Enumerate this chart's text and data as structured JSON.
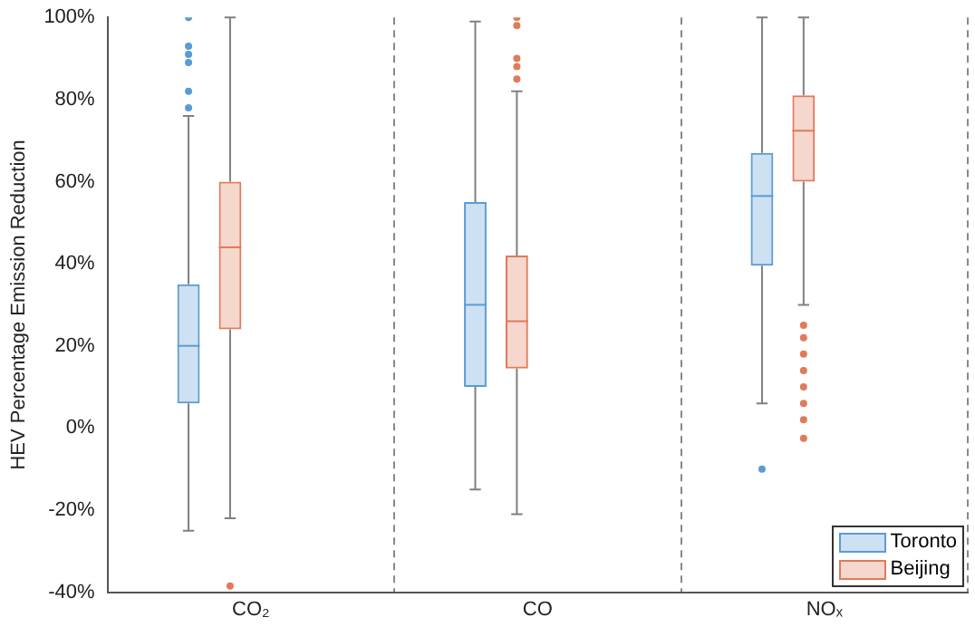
{
  "chart_data": {
    "type": "box",
    "ylabel": "HEV Percentage Emission Reduction",
    "categories": [
      "CO₂",
      "CO",
      "NOₓ"
    ],
    "ylim": [
      -40,
      100
    ],
    "yticks": [
      {
        "value": -40,
        "label": "-40%"
      },
      {
        "value": -20,
        "label": "-20%"
      },
      {
        "value": 0,
        "label": "0%"
      },
      {
        "value": 20,
        "label": "20%"
      },
      {
        "value": 40,
        "label": "40%"
      },
      {
        "value": 60,
        "label": "60%"
      },
      {
        "value": 80,
        "label": "80%"
      },
      {
        "value": 100,
        "label": "100%"
      }
    ],
    "grid": "x",
    "legend": "bottom right",
    "series": [
      {
        "name": "Toronto",
        "color": "#5b9bd5",
        "boxes": [
          {
            "low": -25,
            "q1": 6,
            "median": 20,
            "q3": 35,
            "high": 76,
            "outliers": [
              78,
              82,
              89,
              91,
              93,
              100
            ]
          },
          {
            "low": -15,
            "q1": 10,
            "median": 30,
            "q3": 55,
            "high": 99
          },
          {
            "low": 6,
            "q1": 39.5,
            "median": 56.5,
            "q3": 67,
            "high": 100,
            "outliers": [
              -10
            ]
          }
        ]
      },
      {
        "name": "Beijing",
        "color": "#e07b5a",
        "boxes": [
          {
            "low": -22,
            "q1": 24,
            "median": 44,
            "q3": 60,
            "high": 100,
            "outliers": [
              -38.5
            ]
          },
          {
            "low": -21,
            "q1": 14.5,
            "median": 26,
            "q3": 42,
            "high": 82,
            "outliers": [
              85,
              88,
              90,
              98,
              100
            ]
          },
          {
            "low": 30,
            "q1": 60,
            "median": 72.4,
            "q3": 81,
            "high": 100,
            "outliers": [
              -2.5,
              2,
              6,
              10,
              14,
              18,
              22,
              25
            ]
          }
        ]
      }
    ]
  }
}
